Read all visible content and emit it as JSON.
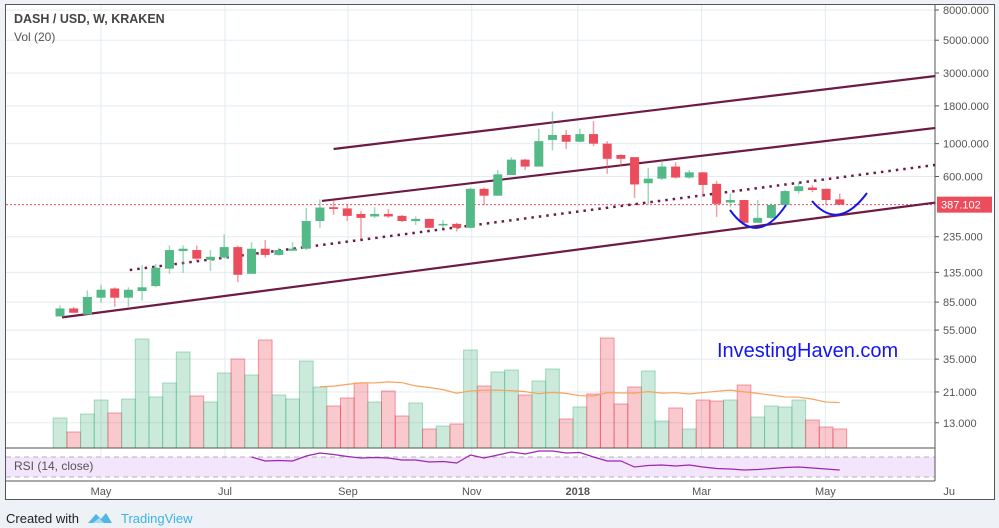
{
  "header": {
    "title": "DASH / USD, W, KRAKEN",
    "volume_label": "Vol (20)",
    "rsi_label": "RSI (14, close)"
  },
  "watermark": "InvestingHaven.com",
  "footer": {
    "created_with": "Created with",
    "brand": "TradingView"
  },
  "colors": {
    "up": "#53b987",
    "down": "#eb4d5c",
    "trendline": "#6d1a45",
    "volume_ma": "#f7a35c",
    "rsi": "#9c27b0",
    "annotation": "#1515ee",
    "last_price": "#eb4d5c"
  },
  "chart_data": {
    "type": "candlestick",
    "title": "DASH / USD, W, KRAKEN",
    "price_scale": "log",
    "ylim": [
      11,
      9000
    ],
    "y_ticks": [
      "8000.000",
      "5000.000",
      "3000.000",
      "1800.000",
      "1000.000",
      "600.000",
      "235.000",
      "135.000",
      "85.000",
      "55.000",
      "35.000",
      "21.000",
      "13.000"
    ],
    "last_price": {
      "value": 387.102,
      "label": "387.102"
    },
    "x_ticks": [
      {
        "label": "May",
        "week": 4.0,
        "bold": false
      },
      {
        "label": "Jul",
        "week": 13.06,
        "bold": false
      },
      {
        "label": "Sep",
        "week": 22.05,
        "bold": false
      },
      {
        "label": "Nov",
        "week": 31.1,
        "bold": false
      },
      {
        "label": "2018",
        "week": 38.85,
        "bold": true
      },
      {
        "label": "Mar",
        "week": 47.9,
        "bold": false
      },
      {
        "label": "May",
        "week": 56.95,
        "bold": false
      },
      {
        "label": "Ju",
        "week": 66.0,
        "bold": false
      }
    ],
    "candles_ohlc": [
      [
        68,
        81,
        68,
        77
      ],
      [
        77,
        79,
        72,
        72
      ],
      [
        70,
        102,
        70,
        92
      ],
      [
        91,
        111,
        84,
        103
      ],
      [
        105,
        107,
        79,
        91
      ],
      [
        91,
        107,
        79,
        103
      ],
      [
        101,
        151,
        87,
        107
      ],
      [
        109,
        154,
        107,
        145
      ],
      [
        143,
        205,
        132,
        191
      ],
      [
        188,
        205,
        134,
        195
      ],
      [
        191,
        205,
        161,
        167
      ],
      [
        164,
        191,
        138,
        172
      ],
      [
        170,
        244,
        167,
        200
      ],
      [
        200,
        205,
        116,
        130
      ],
      [
        132,
        216,
        132,
        195
      ],
      [
        195,
        223,
        170,
        177
      ],
      [
        177,
        198,
        175,
        191
      ],
      [
        189,
        216,
        189,
        195
      ],
      [
        195,
        368,
        191,
        300
      ],
      [
        300,
        420,
        270,
        370
      ],
      [
        372,
        416,
        330,
        362
      ],
      [
        365,
        391,
        300,
        325
      ],
      [
        335,
        350,
        227,
        315
      ],
      [
        322,
        372,
        315,
        335
      ],
      [
        335,
        362,
        315,
        322
      ],
      [
        325,
        330,
        295,
        300
      ],
      [
        300,
        322,
        282,
        310
      ],
      [
        310,
        312,
        268,
        270
      ],
      [
        280,
        305,
        268,
        287
      ],
      [
        287,
        292,
        255,
        270
      ],
      [
        270,
        505,
        268,
        495
      ],
      [
        495,
        505,
        385,
        445
      ],
      [
        445,
        664,
        445,
        620
      ],
      [
        614,
        810,
        614,
        780
      ],
      [
        780,
        790,
        664,
        700
      ],
      [
        700,
        1260,
        700,
        1040
      ],
      [
        1060,
        1650,
        900,
        1144
      ],
      [
        1144,
        1237,
        920,
        1030
      ],
      [
        1030,
        1260,
        1020,
        1160
      ],
      [
        1160,
        1420,
        960,
        1000
      ],
      [
        1000,
        1040,
        625,
        790
      ],
      [
        838,
        850,
        700,
        790
      ],
      [
        810,
        810,
        430,
        530
      ],
      [
        540,
        685,
        385,
        580
      ],
      [
        580,
        765,
        568,
        700
      ],
      [
        700,
        750,
        580,
        590
      ],
      [
        590,
        664,
        580,
        640
      ],
      [
        640,
        640,
        440,
        526
      ],
      [
        535,
        560,
        320,
        392
      ],
      [
        400,
        460,
        373,
        416
      ],
      [
        416,
        416,
        287,
        292
      ],
      [
        292,
        416,
        292,
        315
      ],
      [
        315,
        395,
        310,
        385
      ],
      [
        385,
        486,
        380,
        478
      ],
      [
        478,
        550,
        460,
        515
      ],
      [
        505,
        526,
        470,
        486
      ],
      [
        495,
        495,
        385,
        416
      ],
      [
        420,
        460,
        387,
        387
      ]
    ],
    "volume_relative": [
      30,
      16,
      34,
      48,
      35,
      49,
      109,
      51,
      65,
      96,
      52,
      46,
      75,
      89,
      73,
      108,
      53,
      49,
      87,
      61,
      42,
      50,
      65,
      46,
      57,
      32,
      45,
      19,
      22,
      24,
      98,
      62,
      76,
      78,
      53,
      67,
      79,
      29,
      41,
      54,
      110,
      44,
      61,
      77,
      27,
      40,
      19,
      48,
      47,
      48,
      63,
      31,
      42,
      41,
      48,
      28,
      21,
      19
    ],
    "volume_ma_period": 20,
    "rsi": {
      "start_week": 15,
      "values": [
        70,
        62,
        63,
        62,
        72,
        78,
        75,
        71,
        68,
        69,
        68,
        64,
        64,
        60,
        61,
        58,
        74,
        68,
        74,
        80,
        76,
        82,
        82,
        78,
        79,
        70,
        62,
        62,
        50,
        53,
        54,
        52,
        54,
        50,
        47,
        46,
        44,
        45,
        47,
        49,
        50,
        48,
        46,
        44
      ],
      "bands": [
        70,
        30
      ]
    },
    "trendlines": [
      {
        "name": "upper-channel",
        "from": [
          21,
          920
        ],
        "to": [
          65,
          2865
        ],
        "style": "solid"
      },
      {
        "name": "middle-channel",
        "from": [
          20.15,
          410
        ],
        "to": [
          65,
          1277
        ],
        "style": "solid"
      },
      {
        "name": "lower-channel",
        "from": [
          1.15,
          67
        ],
        "to": [
          65,
          400
        ],
        "style": "solid"
      },
      {
        "name": "dotted-trend",
        "from": [
          6.1,
          140
        ],
        "to": [
          65,
          718
        ],
        "style": "dotted"
      }
    ]
  }
}
